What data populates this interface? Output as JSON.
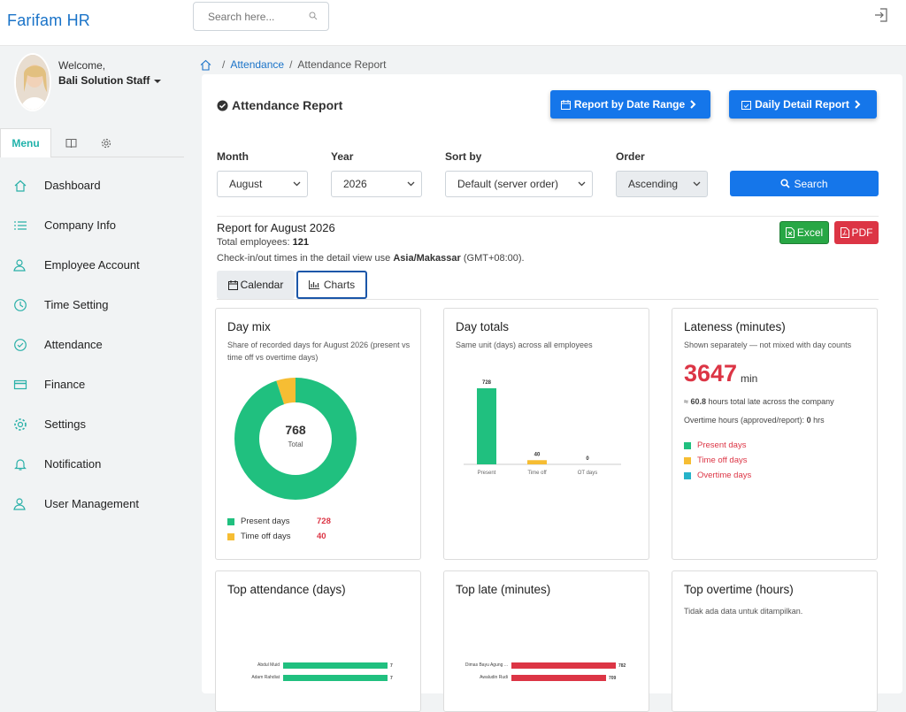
{
  "app": {
    "brand": "Farifam HR"
  },
  "search": {
    "placeholder": "Search here..."
  },
  "user": {
    "welcome": "Welcome,",
    "name": "Bali Solution Staff"
  },
  "sidebar": {
    "tab_menu": "Menu",
    "items": [
      {
        "label": "Dashboard",
        "icon": "home-icon"
      },
      {
        "label": "Company Info",
        "icon": "list-icon"
      },
      {
        "label": "Employee Account",
        "icon": "user-icon"
      },
      {
        "label": "Time Setting",
        "icon": "clock-icon"
      },
      {
        "label": "Attendance",
        "icon": "check-circle-icon"
      },
      {
        "label": "Finance",
        "icon": "credit-card-icon"
      },
      {
        "label": "Settings",
        "icon": "gear-icon"
      },
      {
        "label": "Notification",
        "icon": "bell-icon"
      },
      {
        "label": "User Management",
        "icon": "users-icon"
      }
    ]
  },
  "breadcrumb": {
    "sep": "/",
    "parent": "Attendance",
    "current": "Attendance Report"
  },
  "header": {
    "title": "Attendance Report",
    "btn_range": "Report by Date Range",
    "btn_daily": "Daily Detail Report"
  },
  "filters": {
    "month_label": "Month",
    "month_value": "August",
    "year_label": "Year",
    "year_value": "2026",
    "sort_label": "Sort by",
    "sort_value": "Default (server order)",
    "order_label": "Order",
    "order_value": "Ascending",
    "search_btn": "Search"
  },
  "report": {
    "title": "Report for August 2026",
    "total_label": "Total employees:",
    "total_value": "121",
    "note_pre": "Check-in/out times in the detail view use",
    "note_tz": "Asia/Makassar",
    "note_post": "(GMT+08:00).",
    "excel": "Excel",
    "pdf": "PDF",
    "tab_calendar": "Calendar",
    "tab_charts": "Charts"
  },
  "colors": {
    "present": "#20c07f",
    "timeoff": "#f6bd33",
    "overtime": "#26b3c9",
    "late": "#dc3545",
    "primary": "#1576ea"
  },
  "day_mix": {
    "title": "Day mix",
    "subtitle": "Share of recorded days for August 2026 (present vs time off vs overtime days)",
    "center_value": "768",
    "center_label": "Total",
    "legend": [
      {
        "name": "Present days",
        "value": "728"
      },
      {
        "name": "Time off days",
        "value": "40"
      }
    ]
  },
  "day_totals": {
    "title": "Day totals",
    "subtitle": "Same unit (days) across all employees"
  },
  "lateness": {
    "title": "Lateness (minutes)",
    "subtitle": "Shown separately — not mixed with day counts",
    "value": "3647",
    "unit": "min",
    "hours_pre": "≈",
    "hours_value": "60.8",
    "hours_post": "hours total late across the company",
    "ot_label": "Overtime hours (approved/report):",
    "ot_value": "0",
    "ot_unit": "hrs",
    "legend": [
      "Present days",
      "Time off days",
      "Overtime days"
    ]
  },
  "top_attendance": {
    "title": "Top attendance (days)"
  },
  "top_late": {
    "title": "Top late (minutes)"
  },
  "top_overtime": {
    "title": "Top overtime (hours)",
    "empty": "Tidak ada data untuk ditampilkan."
  },
  "chart_data": [
    {
      "type": "pie",
      "title": "Day mix",
      "categories": [
        "Present days",
        "Time off days"
      ],
      "values": [
        728,
        40
      ],
      "total": 768
    },
    {
      "type": "bar",
      "title": "Day totals",
      "categories": [
        "Present",
        "Time off",
        "OT days"
      ],
      "values": [
        728,
        40,
        0
      ]
    },
    {
      "type": "bar",
      "title": "Top attendance (days)",
      "categories": [
        "Abdul Muid",
        "Adam Rahdiat"
      ],
      "values": [
        7,
        7
      ]
    },
    {
      "type": "bar",
      "title": "Top late (minutes)",
      "categories": [
        "Dimas Bayu Agung ...",
        "Awaludin Rudi"
      ],
      "values": [
        782,
        709
      ]
    }
  ]
}
